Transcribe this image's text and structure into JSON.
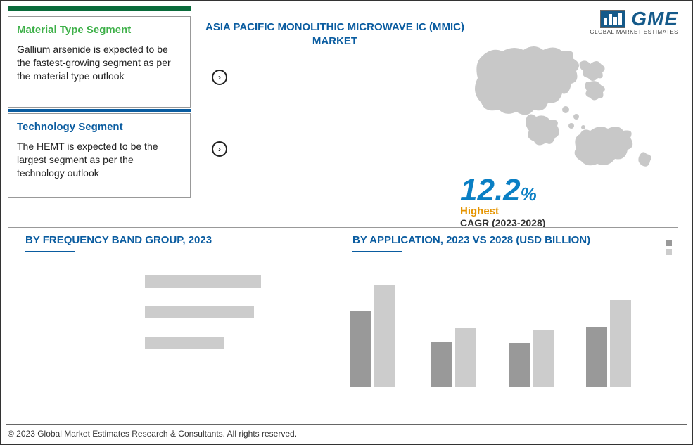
{
  "logo": {
    "text": "GME",
    "subtitle": "GLOBAL MARKET ESTIMATES"
  },
  "top_accent_color": "#0a6b3b",
  "segments": {
    "material": {
      "title": "Material Type Segment",
      "title_color": "#3eb049",
      "body": "Gallium arsenide is expected to be the fastest-growing segment as per the material type outlook"
    },
    "technology": {
      "title": "Technology Segment",
      "title_color": "#0a5ca0",
      "bar_color": "#0a5ca0",
      "body": "The HEMT is expected to be the largest segment as per the technology outlook"
    }
  },
  "main_title": "ASIA PACIFIC MONOLITHIC MICROWAVE IC (MMIC) MARKET",
  "main_title_color": "#0a5ca0",
  "cagr": {
    "value": "12.2",
    "pct": "%",
    "label": "Highest",
    "label_color": "#e59400",
    "range": "CAGR (2023-2028)",
    "value_color": "#0a7fc4"
  },
  "map_color": "#c8c8c8",
  "freq_chart": {
    "title": "BY FREQUENCY BAND GROUP, 2023",
    "type": "horizontal_bar",
    "bg_color": "#cccccc",
    "rows": [
      {
        "total_width": 165,
        "fill_width": 0
      },
      {
        "total_width": 155,
        "fill_width": 0
      },
      {
        "total_width": 113,
        "fill_width": 0
      }
    ]
  },
  "app_chart": {
    "title": "BY APPLICATION, 2023 VS 2028 (USD BILLION)",
    "type": "grouped_bar",
    "series_colors": {
      "a": "#999999",
      "b": "#cccccc"
    },
    "axis_color": "#333333",
    "ylim": [
      0,
      150
    ],
    "groups": [
      {
        "x": 5,
        "a": 100,
        "b": 135
      },
      {
        "x": 120,
        "a": 60,
        "b": 78
      },
      {
        "x": 230,
        "a": 58,
        "b": 75
      },
      {
        "x": 340,
        "a": 80,
        "b": 115
      }
    ],
    "legend": [
      {
        "color": "#999999",
        "label": ""
      },
      {
        "color": "#cccccc",
        "label": ""
      }
    ]
  },
  "footer": "© 2023 Global Market Estimates Research & Consultants. All rights reserved."
}
